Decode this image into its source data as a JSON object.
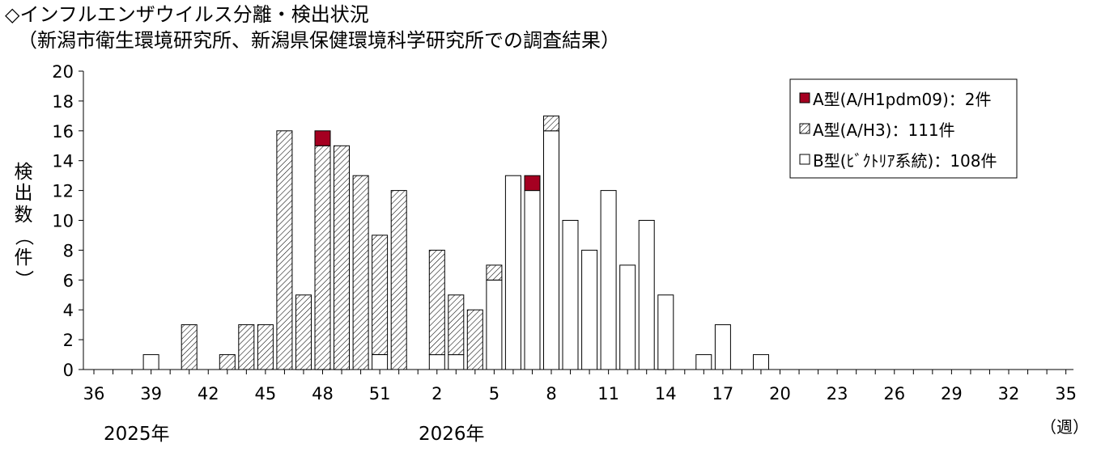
{
  "title": "◇インフルエンザウイルス分離・検出状況",
  "subtitle": "（新潟市衛生環境研究所、新潟県保健環境科学研究所での調査結果）",
  "chart_data": {
    "type": "bar",
    "stacked": true,
    "title": "◇インフルエンザウイルス分離・検出状況",
    "ylabel": "検出数（件）",
    "xlabel": "（週）",
    "ylim": [
      0,
      20
    ],
    "yticks": [
      "0",
      "2",
      "4",
      "6",
      "8",
      "10",
      "12",
      "14",
      "16",
      "18",
      "20"
    ],
    "xticks": [
      "36",
      "39",
      "42",
      "45",
      "48",
      "51",
      "2",
      "5",
      "8",
      "11",
      "14",
      "17",
      "20",
      "23",
      "26",
      "29",
      "32",
      "35"
    ],
    "year_labels": [
      "2025年",
      "2026年"
    ],
    "categories": [
      "36",
      "37",
      "38",
      "39",
      "40",
      "41",
      "42",
      "43",
      "44",
      "45",
      "46",
      "47",
      "48",
      "49",
      "50",
      "51",
      "52",
      "1",
      "2",
      "3",
      "4",
      "5",
      "6",
      "7",
      "8",
      "9",
      "10",
      "11",
      "12",
      "13",
      "14",
      "15",
      "16",
      "17",
      "18",
      "19",
      "20",
      "21",
      "22",
      "23",
      "24",
      "25",
      "26",
      "27",
      "28",
      "29",
      "30",
      "31",
      "32",
      "33",
      "34",
      "35"
    ],
    "series": [
      {
        "name": "B型(ﾋﾞｸﾄﾘｱ系統)：108件",
        "color": "#ffffff",
        "pattern": "none",
        "values": [
          0,
          0,
          0,
          1,
          0,
          0,
          0,
          0,
          0,
          0,
          0,
          0,
          0,
          0,
          0,
          1,
          0,
          0,
          1,
          1,
          0,
          6,
          13,
          12,
          16,
          10,
          8,
          12,
          7,
          10,
          5,
          0,
          1,
          3,
          0,
          1,
          0,
          0,
          0,
          0,
          0,
          0,
          0,
          0,
          0,
          0,
          0,
          0,
          0,
          0,
          0,
          0
        ]
      },
      {
        "name": "A型(A/H3)：111件",
        "color": "#ffffff",
        "pattern": "hatch",
        "values": [
          0,
          0,
          0,
          0,
          0,
          3,
          0,
          1,
          3,
          3,
          16,
          5,
          15,
          15,
          13,
          8,
          12,
          0,
          7,
          4,
          4,
          1,
          0,
          0,
          1,
          0,
          0,
          0,
          0,
          0,
          0,
          0,
          0,
          0,
          0,
          0,
          0,
          0,
          0,
          0,
          0,
          0,
          0,
          0,
          0,
          0,
          0,
          0,
          0,
          0,
          0,
          0
        ]
      },
      {
        "name": "A型(A/H1pdm09)：2件",
        "color": "#a50021",
        "pattern": "none",
        "values": [
          0,
          0,
          0,
          0,
          0,
          0,
          0,
          0,
          0,
          0,
          0,
          0,
          1,
          0,
          0,
          0,
          0,
          0,
          0,
          0,
          0,
          0,
          0,
          1,
          0,
          0,
          0,
          0,
          0,
          0,
          0,
          0,
          0,
          0,
          0,
          0,
          0,
          0,
          0,
          0,
          0,
          0,
          0,
          0,
          0,
          0,
          0,
          0,
          0,
          0,
          0,
          0
        ]
      }
    ],
    "legend_order": [
      2,
      1,
      0
    ],
    "legend_position": "top-right",
    "grid": false
  }
}
